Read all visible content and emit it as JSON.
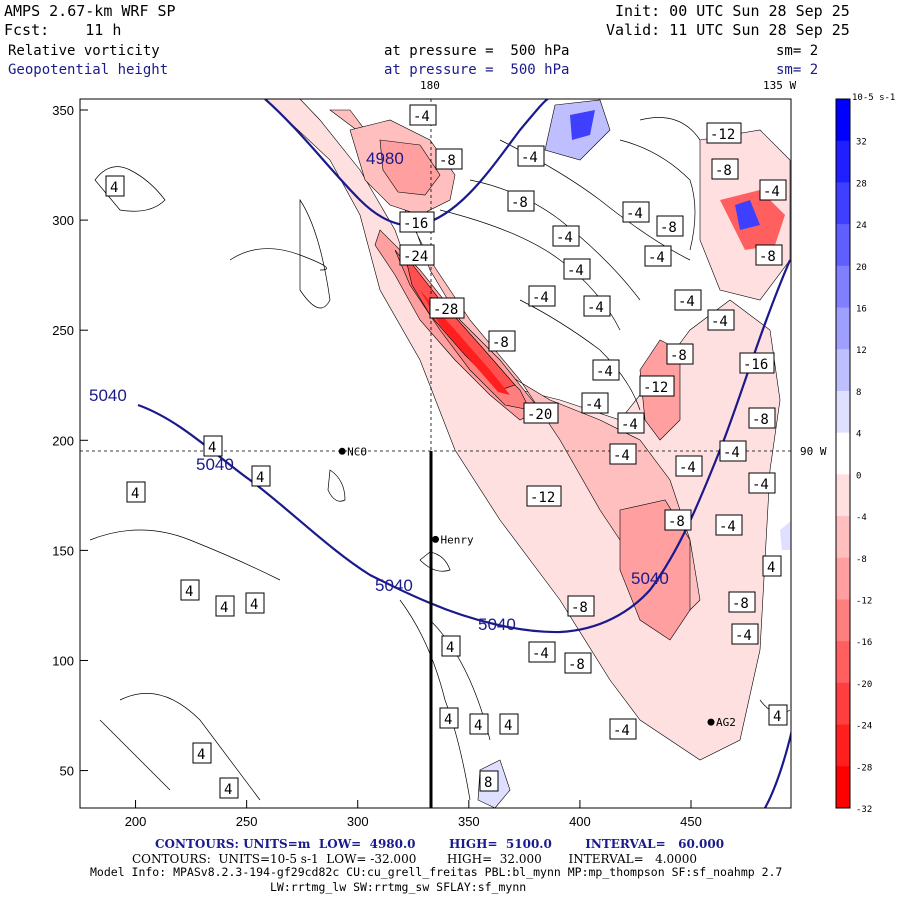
{
  "header": {
    "model": "AMPS 2.67-km WRF SP",
    "forecast": "Fcst:    11 h",
    "init": "Init: 00 UTC Sun 28 Sep 25",
    "valid": "Valid: 11 UTC Sun 28 Sep 25",
    "field1": "Relative vorticity",
    "field2": "Geopotential height",
    "level1": "at pressure =  500 hPa",
    "level2": "at pressure =  500 hPa",
    "sm1": "sm= 2",
    "sm2": "sm= 2"
  },
  "map": {
    "lon_top_left": "180",
    "lon_top_right": "135 W",
    "lon_right": "90 W",
    "x_ticks": [
      "200",
      "250",
      "300",
      "350",
      "400",
      "450"
    ],
    "y_ticks": [
      "350",
      "300",
      "250",
      "200",
      "150",
      "100",
      "50"
    ],
    "stations": [
      {
        "name": "NCO",
        "x": 293,
        "y": 195
      },
      {
        "name": "Henry",
        "x": 335,
        "y": 155
      },
      {
        "name": "AG2",
        "x": 459,
        "y": 72
      }
    ],
    "height_labels": [
      "5040",
      "5040",
      "5040",
      "5040",
      "5040",
      "4980"
    ],
    "vorticity_labels": [
      "-4",
      "-8",
      "-12",
      "-16",
      "-20",
      "-24",
      "-28",
      "4",
      "8"
    ]
  },
  "colorbar": {
    "unit": "10-5 s-1",
    "ticks": [
      "32",
      "28",
      "24",
      "20",
      "16",
      "12",
      "8",
      "4",
      "0",
      "-4",
      "-8",
      "-12",
      "-16",
      "-20",
      "-24",
      "-28",
      "-32"
    ],
    "colors": [
      "#0000ff",
      "#1f1fff",
      "#3f3fff",
      "#5f5fff",
      "#7f7fff",
      "#9f9fff",
      "#bfbfff",
      "#dfdfff",
      "#ffffff",
      "#ffdfdf",
      "#ffbfbf",
      "#ff9f9f",
      "#ff7f7f",
      "#ff5f5f",
      "#ff3f3f",
      "#ff1f1f",
      "#ff0000"
    ]
  },
  "footer": {
    "line1": "CONTOURS: UNITS=m  LOW=  4980.0        HIGH=  5100.0        INTERVAL=   60.000",
    "line2": "CONTOURS:  UNITS=10-5 s-1  LOW= -32.000        HIGH=  32.000       INTERVAL=   4.0000",
    "line3": "Model Info: MPASv8.2.3-194-gf29cd82c CU:cu_grell_freitas PBL:bl_mynn MP:mp_thompson SF:sf_noahmp 2.7",
    "line4": "LW:rrtmg_lw SW:rrtmg_sw SFLAY:sf_mynn"
  }
}
